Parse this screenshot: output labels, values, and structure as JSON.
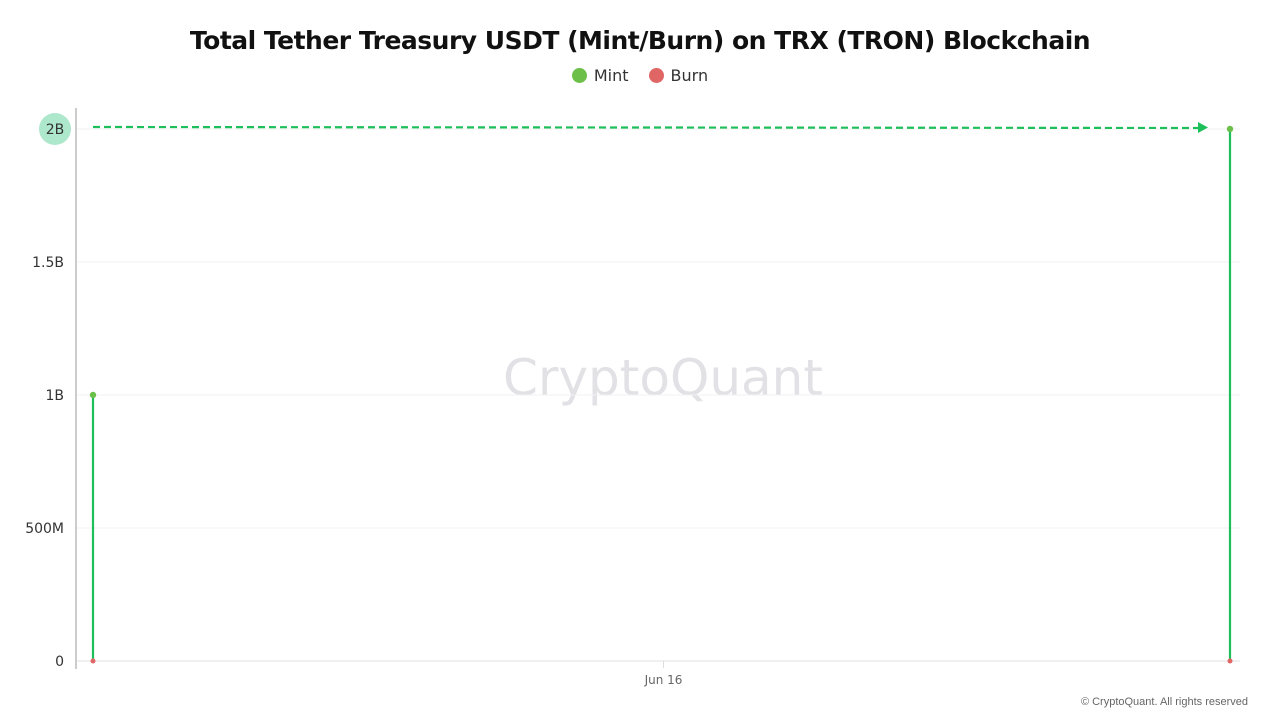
{
  "chart_data": {
    "type": "line",
    "title": "Total Tether Treasury USDT (Mint/Burn) on TRX (TRON) Blockchain",
    "xlabel": "",
    "ylabel": "",
    "x_ticks": [
      "Jun 16"
    ],
    "ylim": [
      0,
      2000000000
    ],
    "y_ticks": [
      {
        "value": 0,
        "label": "0"
      },
      {
        "value": 500000000,
        "label": "500M"
      },
      {
        "value": 1000000000,
        "label": "1B"
      },
      {
        "value": 1500000000,
        "label": "1.5B"
      },
      {
        "value": 2000000000,
        "label": "2B"
      }
    ],
    "grid": true,
    "legend": "top-center",
    "series": [
      {
        "name": "Mint",
        "color": "#6cc04a",
        "stem_color": "#1dbf5a",
        "values": [
          1000000000,
          2000000000
        ]
      },
      {
        "name": "Burn",
        "color": "#e06666",
        "values": [
          0,
          0
        ]
      }
    ],
    "annotations": [
      {
        "type": "dashed-arrow",
        "value": 2000000000,
        "color": "#1dbf5a",
        "highlight_label": "2B",
        "highlight_color": "#aee8cc"
      }
    ],
    "watermark": "CryptoQuant"
  },
  "footer": {
    "copyright": "© CryptoQuant. All rights reserved"
  }
}
